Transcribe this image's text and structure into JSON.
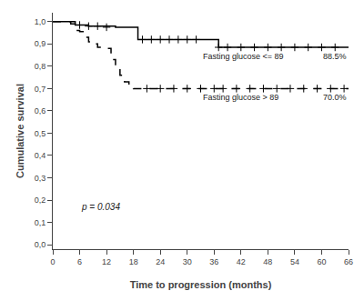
{
  "chart_data": {
    "type": "step",
    "xlabel": "Time to progression (months)",
    "ylabel": "Cumulative survival",
    "annotation": "p = 0.034",
    "xlim": [
      0,
      66
    ],
    "ylim": [
      -0.02,
      1.04
    ],
    "xticks": [
      0,
      6,
      12,
      18,
      24,
      30,
      36,
      42,
      48,
      54,
      60,
      66
    ],
    "yticks": [
      {
        "value": 0.0,
        "label": "0,0"
      },
      {
        "value": 0.1,
        "label": "0,1"
      },
      {
        "value": 0.2,
        "label": "0,2"
      },
      {
        "value": 0.3,
        "label": "0,3"
      },
      {
        "value": 0.4,
        "label": "0,4"
      },
      {
        "value": 0.5,
        "label": "0,5"
      },
      {
        "value": 0.6,
        "label": "0,6"
      },
      {
        "value": 0.7,
        "label": "0,7"
      },
      {
        "value": 0.8,
        "label": "0,8"
      },
      {
        "value": 0.9,
        "label": "0,9"
      },
      {
        "value": 1.0,
        "label": "1,0"
      }
    ],
    "grid": false,
    "series": [
      {
        "name": "Fasting glucose <= 89",
        "end_label": "88.5%",
        "color": "#000000",
        "line_style": "solid",
        "marker": "plus",
        "x": [
          0,
          3,
          4,
          5,
          6,
          7,
          8,
          14,
          18,
          19,
          36,
          37,
          66
        ],
        "values": [
          1.0,
          1.0,
          0.99,
          0.985,
          0.985,
          0.985,
          0.98,
          0.975,
          0.975,
          0.92,
          0.92,
          0.885,
          0.885
        ],
        "censor_x": [
          6,
          8,
          10,
          12,
          20,
          22,
          24,
          26,
          28,
          30,
          32,
          37,
          39,
          42,
          45,
          48,
          51,
          54,
          57,
          60,
          63
        ],
        "censor_values": [
          0.985,
          0.98,
          0.98,
          0.975,
          0.92,
          0.92,
          0.92,
          0.92,
          0.92,
          0.92,
          0.92,
          0.885,
          0.885,
          0.885,
          0.885,
          0.885,
          0.885,
          0.885,
          0.885,
          0.885,
          0.885
        ]
      },
      {
        "name": "Fasting glucose > 89",
        "end_label": "70.0%",
        "color": "#000000",
        "line_style": "dashed",
        "marker": "plus",
        "x": [
          0,
          4,
          5,
          6,
          7,
          8,
          9,
          10,
          11,
          13,
          14,
          15,
          16,
          17,
          18,
          19,
          20,
          66
        ],
        "values": [
          1.0,
          1.0,
          0.96,
          0.955,
          0.93,
          0.91,
          0.9,
          0.885,
          0.88,
          0.83,
          0.8,
          0.76,
          0.73,
          0.71,
          0.7,
          0.7,
          0.7,
          0.7
        ],
        "censor_x": [
          21,
          24,
          27,
          30,
          33,
          36,
          38,
          41,
          44,
          47,
          50,
          53,
          56,
          59,
          62,
          65
        ],
        "censor_values": [
          0.7,
          0.7,
          0.7,
          0.7,
          0.7,
          0.7,
          0.7,
          0.7,
          0.7,
          0.7,
          0.7,
          0.7,
          0.7,
          0.7,
          0.7,
          0.7
        ]
      }
    ]
  }
}
